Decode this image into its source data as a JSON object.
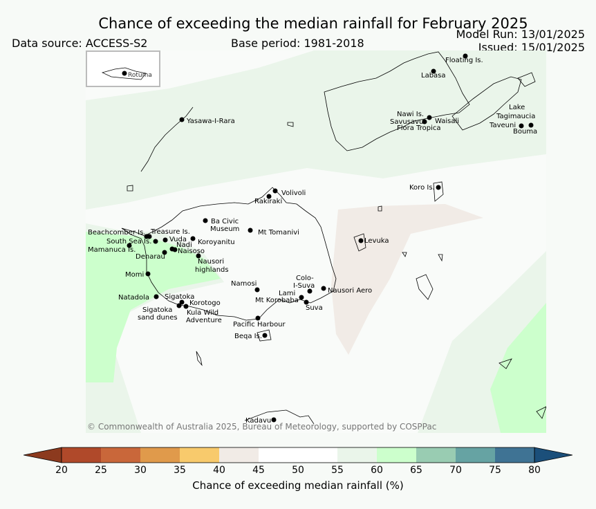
{
  "title": "Chance of exceeding the median rainfall for February 2025",
  "model_run": "Model Run: 13/01/2025",
  "issued": "Issued: 15/01/2025",
  "data_source": "Data source: ACCESS-S2",
  "base_period": "Base period: 1981-2018",
  "copyright": "© Commonwealth of Australia 2025, Bureau of Meteorology, supported by COSPPac",
  "inset_label": "Rotuma",
  "colorbar": {
    "label": "Chance of exceeding median rainfall (%)",
    "ticks": [
      "20",
      "25",
      "30",
      "35",
      "40",
      "45",
      "50",
      "55",
      "60",
      "65",
      "70",
      "75",
      "80"
    ],
    "colors": {
      "under_20": "#8c3a1e",
      "20_25": "#b0492a",
      "25_30": "#c9673a",
      "30_35": "#e09a4b",
      "35_40": "#f8ca6c",
      "40_45": "#f1ebe6",
      "45_50": "#ffffff",
      "50_55": "#ffffff",
      "55_60": "#eaf5ea",
      "60_65": "#ccffcc",
      "65_70": "#99ccb2",
      "70_75": "#66a3a3",
      "75_80": "#3f7394",
      "over_80": "#1b4f7a"
    }
  },
  "places": [
    "Floating Is.",
    "Labasa",
    "Yasawa-I-Rara",
    "Nawi Is.",
    "Savusavu",
    "Waisali",
    "Flora Tropica",
    "Lake",
    "Tagimaucia",
    "Taveuni",
    "Bouma",
    "Koro Is.",
    "Volivoli",
    "Rakiraki",
    "Ba Civic",
    "Museum",
    "Mt Tomanivi",
    "Beachcomber Is.",
    "Treasure Is.",
    "South Sea Is.",
    "Vuda",
    "Koroyanitu",
    "Nadi",
    "Mamanuca Is.",
    "Naisoso",
    "Denarau",
    "Nausori",
    "highlands",
    "Levuka",
    "Momi",
    "Namosi",
    "Colo-",
    "I-Suva",
    "Nausori Aero",
    "Lami",
    "Natadola",
    "Sigatoka",
    "Mt Korobaba",
    "Suva",
    "Korotogo",
    "Sigatoka",
    "sand dunes",
    "Kula Wild",
    "Adventure",
    "Pacific Harbour",
    "Beqa Is.",
    "Kadavu"
  ]
}
